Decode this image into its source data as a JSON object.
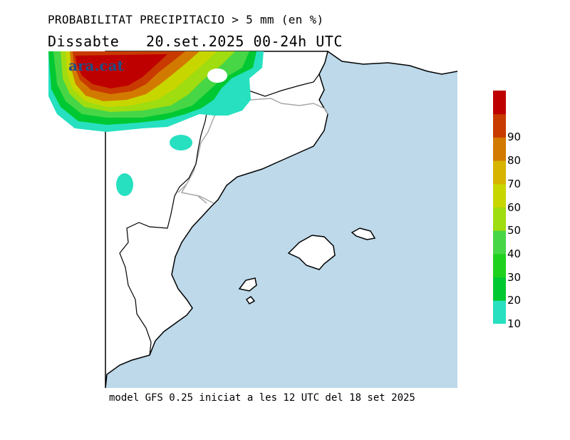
{
  "header": {
    "title": "PROBABILITAT PRECIPITACIO > 5 mm (en %)",
    "date_line": "Dissabte   20.set.2025 00-24h UTC"
  },
  "footer": {
    "model_note": "model GFS 0.25 iniciat a les 12 UTC del 18 set 2025"
  },
  "logo": {
    "text": "ara.cat"
  },
  "colorbar": {
    "levels": [
      {
        "label": "10",
        "color": "#26e0c0"
      },
      {
        "label": "20",
        "color": "#00c832"
      },
      {
        "label": "30",
        "color": "#1fd11f"
      },
      {
        "label": "40",
        "color": "#46d646"
      },
      {
        "label": "50",
        "color": "#9fdc10"
      },
      {
        "label": "60",
        "color": "#c8d600"
      },
      {
        "label": "70",
        "color": "#d6b400"
      },
      {
        "label": "80",
        "color": "#d27a00"
      },
      {
        "label": "90",
        "color": "#c83a00"
      },
      {
        "label": "",
        "color": "#bf0000"
      }
    ],
    "labels": [
      "10",
      "20",
      "30",
      "40",
      "50",
      "60",
      "70",
      "80",
      "90"
    ]
  },
  "colors": {
    "sea": "#bdd9ea",
    "land": "#ffffff",
    "coast": "#000000",
    "border": "#a0a0a0"
  }
}
